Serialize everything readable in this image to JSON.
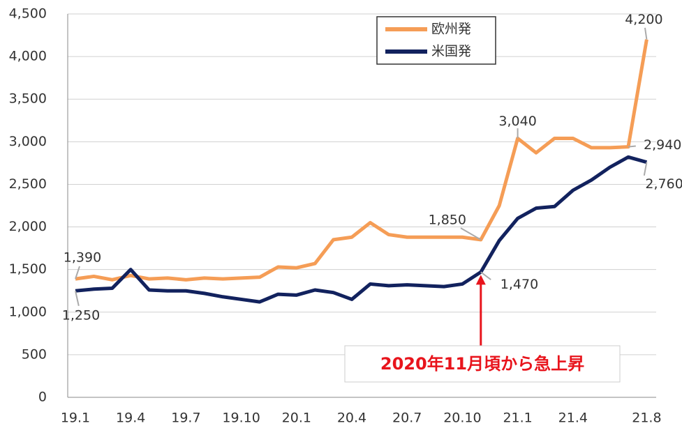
{
  "chart_data": {
    "type": "line",
    "categories": [
      "19.1",
      null,
      null,
      "19.4",
      null,
      null,
      "19.7",
      null,
      null,
      "19.10",
      null,
      null,
      "20.1",
      null,
      null,
      "20.4",
      null,
      null,
      "20.7",
      null,
      null,
      "20.10",
      null,
      null,
      "21.1",
      null,
      null,
      "21.4",
      null,
      null,
      null,
      "21.8"
    ],
    "series": [
      {
        "name": "欧州発",
        "color": "#f59d56",
        "values": [
          1390,
          1420,
          1380,
          1430,
          1390,
          1400,
          1380,
          1400,
          1390,
          1400,
          1410,
          1530,
          1520,
          1570,
          1850,
          1880,
          2050,
          1910,
          1880,
          1880,
          1880,
          1880,
          1850,
          2250,
          3040,
          2870,
          3040,
          3040,
          2930,
          2930,
          2940,
          4200
        ],
        "value_labels": [
          "1,390",
          null,
          null,
          null,
          null,
          null,
          null,
          null,
          null,
          null,
          null,
          null,
          null,
          null,
          null,
          null,
          null,
          null,
          null,
          null,
          null,
          null,
          "1,850",
          null,
          "3,040",
          null,
          null,
          null,
          null,
          null,
          "2,940",
          "4,200"
        ]
      },
      {
        "name": "米国発",
        "color": "#12225e",
        "values": [
          1250,
          1270,
          1280,
          1500,
          1260,
          1250,
          1250,
          1220,
          1180,
          1150,
          1120,
          1210,
          1200,
          1260,
          1230,
          1150,
          1330,
          1310,
          1320,
          1310,
          1300,
          1330,
          1470,
          1840,
          2100,
          2220,
          2240,
          2430,
          2550,
          2700,
          2820,
          2760
        ],
        "value_labels": [
          "1,250",
          null,
          null,
          null,
          null,
          null,
          null,
          null,
          null,
          null,
          null,
          null,
          null,
          null,
          null,
          null,
          null,
          null,
          null,
          null,
          null,
          null,
          "1,470",
          null,
          null,
          null,
          null,
          null,
          null,
          null,
          null,
          "2,760"
        ]
      }
    ],
    "ylim": [
      0,
      4500
    ],
    "yticks": [
      0,
      500,
      {
        "value": 1000,
        "label": "1,000"
      },
      {
        "value": 1500,
        "label": "1,500"
      },
      {
        "value": 2000,
        "label": "2,000"
      },
      {
        "value": 2500,
        "label": "2,500"
      },
      {
        "value": 3000,
        "label": "3,000"
      },
      {
        "value": 3500,
        "label": "3,500"
      },
      {
        "value": 4000,
        "label": "4,000"
      },
      {
        "value": 4500,
        "label": "4,500"
      }
    ],
    "grid": true,
    "annotation": "2020年11月頃から急上昇"
  }
}
